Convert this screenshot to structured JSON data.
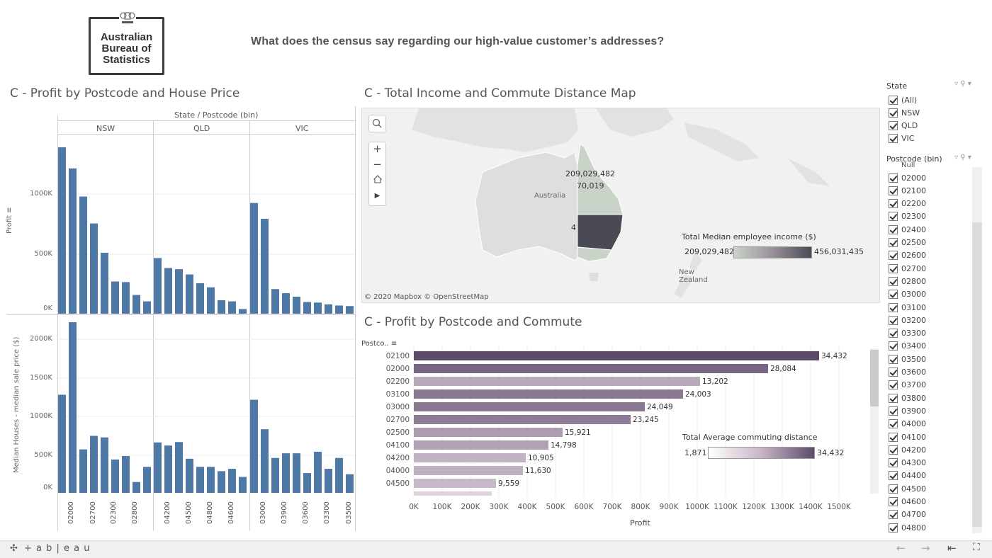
{
  "logo": {
    "line1": "Australian",
    "line2": "Bureau of",
    "line3": "Statistics",
    "crest_text": "AUSTRALIA"
  },
  "header": {
    "title": "What does the census say regarding our high-value customer’s addresses?"
  },
  "left": {
    "title": "C - Profit by Postcode and House Price",
    "column_header": "State / Postcode (bin)",
    "states": [
      "NSW",
      "QLD",
      "VIC"
    ],
    "profit_axis_label": "Profit",
    "profit_ticks": [
      "1000K",
      "500K",
      "0K"
    ],
    "price_axis_label": "Median Houses - median sale price ($)",
    "price_ticks": [
      "2000K",
      "1500K",
      "1000K",
      "500K",
      "0K"
    ],
    "postcode_labels": [
      "02000",
      "02700",
      "02300",
      "02800",
      "04200",
      "04500",
      "04800",
      "04600",
      "03000",
      "03900",
      "03600",
      "03300",
      "03500"
    ]
  },
  "chart_data": [
    {
      "type": "bar",
      "title": "C - Profit by Postcode and House Price",
      "ylabel": "Profit",
      "ylim": [
        0,
        1450000
      ],
      "groups": [
        {
          "name": "NSW",
          "values": [
            1420000,
            1240000,
            1000000,
            770000,
            520000,
            275000,
            270000,
            160000,
            105000
          ]
        },
        {
          "name": "QLD",
          "values": [
            475000,
            390000,
            380000,
            335000,
            260000,
            225000,
            115000,
            105000,
            40000
          ]
        },
        {
          "name": "VIC",
          "values": [
            945000,
            810000,
            210000,
            175000,
            145000,
            100000,
            95000,
            80000,
            70000,
            65000
          ]
        }
      ]
    },
    {
      "type": "bar",
      "ylabel": "Median Houses - median sale price ($)",
      "ylim": [
        0,
        2200000
      ],
      "groups": [
        {
          "name": "NSW",
          "values": [
            1265000,
            2200000,
            560000,
            735000,
            715000,
            430000,
            475000,
            140000,
            335000
          ]
        },
        {
          "name": "QLD",
          "values": [
            650000,
            610000,
            655000,
            440000,
            335000,
            335000,
            280000,
            310000,
            205000
          ]
        },
        {
          "name": "VIC",
          "values": [
            1200000,
            820000,
            450000,
            510000,
            510000,
            255000,
            530000,
            310000,
            450000,
            240000
          ]
        }
      ]
    },
    {
      "type": "bar",
      "orientation": "horizontal",
      "title": "C - Profit by Postcode and Commute",
      "xlabel": "Profit",
      "ylabel": "Postco..",
      "xlim": [
        0,
        1500000
      ],
      "categories": [
        "02100",
        "02000",
        "02200",
        "03100",
        "03000",
        "02700",
        "02500",
        "04100",
        "04200",
        "04000",
        "04500"
      ],
      "values": [
        1430000,
        1250000,
        1010000,
        950000,
        815000,
        765000,
        525000,
        475000,
        395000,
        385000,
        290000
      ],
      "commute": [
        34432,
        28084,
        13202,
        24003,
        24049,
        23245,
        15921,
        14798,
        10905,
        11630,
        9559
      ],
      "commute_labels": [
        "34,432",
        "28,084",
        "13,202",
        "24,003",
        "24,049",
        "23,245",
        "15,921",
        "14,798",
        "10,905",
        "11,630",
        "9,559"
      ],
      "x_ticks": [
        "0K",
        "100K",
        "200K",
        "300K",
        "400K",
        "500K",
        "600K",
        "700K",
        "800K",
        "900K",
        "1000K",
        "1100K",
        "1200K",
        "1300K",
        "1400K",
        "1500K"
      ],
      "legend": {
        "title": "Total Average commuting distance",
        "min": "1,871",
        "max": "34,432"
      }
    }
  ],
  "map": {
    "title": "C - Total Income and Commute Distance Map",
    "label_income": "209,029,482",
    "label_commute": "70,019",
    "label_partial": "4",
    "country_label": "Australia",
    "nz_label": "New Zealand",
    "attribution": "© 2020 Mapbox  © OpenStreetMap",
    "legend": {
      "title": "Total Median employee income ($)",
      "min": "209,029,482",
      "max": "456,031,435"
    }
  },
  "filters": {
    "state_title": "State",
    "state_items": [
      "(All)",
      "NSW",
      "QLD",
      "VIC"
    ],
    "postcode_title": "Postcode (bin)",
    "postcode_partial": "Null",
    "postcode_items": [
      "02000",
      "02100",
      "02200",
      "02300",
      "02400",
      "02500",
      "02600",
      "02700",
      "02800",
      "03000",
      "03100",
      "03200",
      "03300",
      "03400",
      "03500",
      "03600",
      "03700",
      "03800",
      "03900",
      "04000",
      "04100",
      "04200",
      "04300",
      "04400",
      "04500",
      "04600",
      "04700",
      "04800"
    ]
  },
  "footer": {
    "brand": "+ a b | e a u"
  },
  "colors": {
    "bar_blue": "#4e79a7",
    "purple_dark": "#5e4a6a",
    "purple_light": "#d9c9d9",
    "map_green": "#c9d3c8",
    "map_dark": "#4a4a55"
  }
}
